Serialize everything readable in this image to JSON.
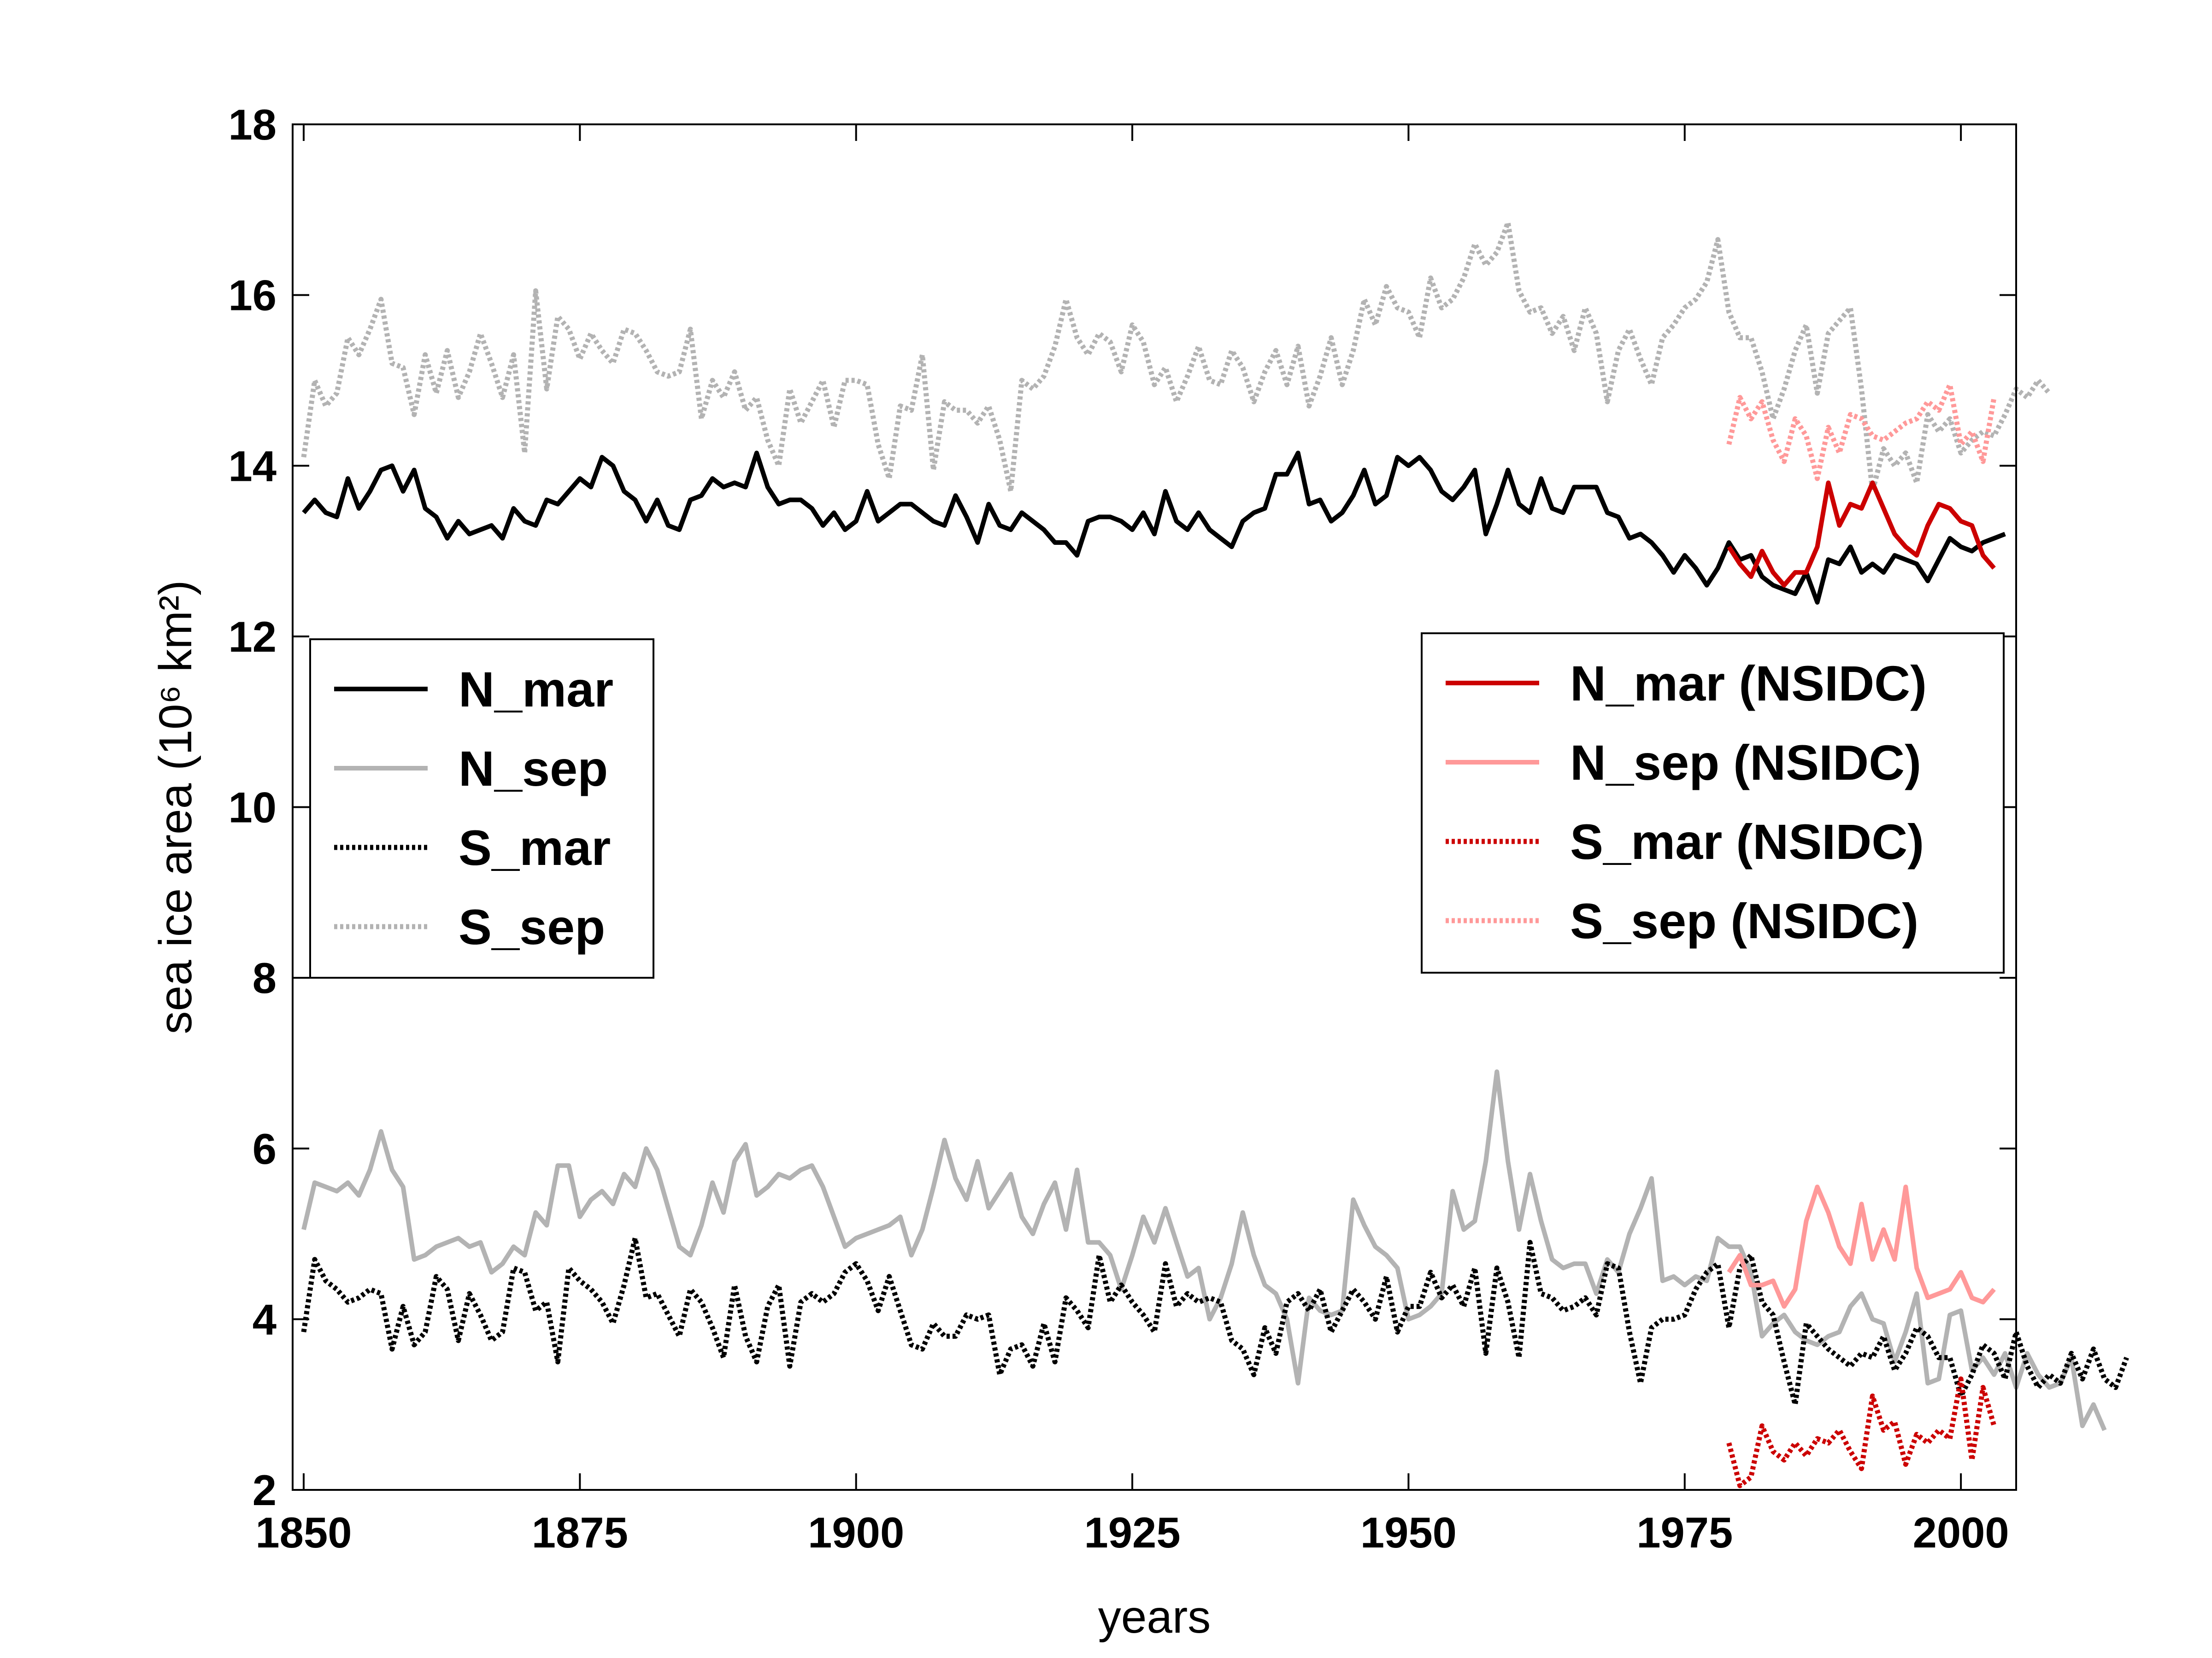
{
  "chart_data": {
    "type": "line",
    "title": "",
    "xlabel": "years",
    "ylabel": "sea ice area (10⁶ km²)",
    "xlim": [
      1849,
      2005
    ],
    "ylim": [
      2,
      18
    ],
    "x_ticks": [
      1850,
      1875,
      1900,
      1925,
      1950,
      1975,
      2000
    ],
    "y_ticks": [
      2,
      4,
      6,
      8,
      10,
      12,
      14,
      16,
      18
    ],
    "grid": false,
    "legends": [
      {
        "placement": "left",
        "entries": [
          "N_mar",
          "N_sep",
          "S_mar",
          "S_sep"
        ]
      },
      {
        "placement": "right",
        "entries": [
          "N_mar (NSIDC)",
          "N_sep (NSIDC)",
          "S_mar (NSIDC)",
          "S_sep (NSIDC)"
        ]
      }
    ],
    "series": [
      {
        "name": "N_mar",
        "color": "#000000",
        "dash": "solid",
        "x_start": 1850,
        "values": [
          13.45,
          13.6,
          13.45,
          13.4,
          13.85,
          13.5,
          13.7,
          13.95,
          14.0,
          13.7,
          13.95,
          13.5,
          13.4,
          13.15,
          13.35,
          13.2,
          13.25,
          13.3,
          13.15,
          13.5,
          13.35,
          13.3,
          13.6,
          13.55,
          13.7,
          13.85,
          13.75,
          14.1,
          14.0,
          13.7,
          13.6,
          13.35,
          13.6,
          13.3,
          13.25,
          13.6,
          13.65,
          13.85,
          13.75,
          13.8,
          13.75,
          14.15,
          13.75,
          13.55,
          13.6,
          13.6,
          13.5,
          13.3,
          13.45,
          13.25,
          13.35,
          13.7,
          13.35,
          13.45,
          13.55,
          13.55,
          13.45,
          13.35,
          13.3,
          13.65,
          13.4,
          13.1,
          13.55,
          13.3,
          13.25,
          13.45,
          13.35,
          13.25,
          13.1,
          13.1,
          12.95,
          13.35,
          13.4,
          13.4,
          13.35,
          13.25,
          13.45,
          13.2,
          13.7,
          13.35,
          13.25,
          13.45,
          13.25,
          13.15,
          13.05,
          13.35,
          13.45,
          13.5,
          13.9,
          13.9,
          14.15,
          13.55,
          13.6,
          13.35,
          13.45,
          13.65,
          13.95,
          13.55,
          13.65,
          14.1,
          14.0,
          14.1,
          13.95,
          13.7,
          13.6,
          13.75,
          13.95,
          13.2,
          13.55,
          13.95,
          13.55,
          13.45,
          13.85,
          13.5,
          13.45,
          13.75,
          13.75,
          13.75,
          13.45,
          13.4,
          13.15,
          13.2,
          13.1,
          12.95,
          12.75,
          12.95,
          12.8,
          12.6,
          12.8,
          13.1,
          12.9,
          12.95,
          12.7,
          12.6,
          12.55,
          12.5,
          12.75,
          12.4,
          12.9,
          12.85,
          13.05,
          12.75,
          12.85,
          12.75,
          12.95,
          12.9,
          12.85,
          12.65,
          12.9,
          13.15,
          13.05,
          13.0,
          13.1,
          13.15,
          13.2
        ]
      },
      {
        "name": "N_sep",
        "color": "#b3b3b3",
        "dash": "solid",
        "x_start": 1850,
        "values": [
          5.05,
          5.6,
          5.55,
          5.5,
          5.6,
          5.45,
          5.75,
          6.2,
          5.75,
          5.55,
          4.7,
          4.75,
          4.85,
          4.9,
          4.95,
          4.85,
          4.9,
          4.55,
          4.65,
          4.85,
          4.75,
          5.25,
          5.1,
          5.8,
          5.8,
          5.2,
          5.4,
          5.5,
          5.35,
          5.7,
          5.55,
          6.0,
          5.75,
          5.3,
          4.85,
          4.75,
          5.1,
          5.6,
          5.25,
          5.85,
          6.05,
          5.45,
          5.55,
          5.7,
          5.65,
          5.75,
          5.8,
          5.55,
          5.2,
          4.85,
          4.95,
          5.0,
          5.05,
          5.1,
          5.2,
          4.75,
          5.05,
          5.55,
          6.1,
          5.65,
          5.4,
          5.85,
          5.3,
          5.5,
          5.7,
          5.2,
          5.0,
          5.35,
          5.6,
          5.05,
          5.75,
          4.9,
          4.9,
          4.75,
          4.35,
          4.75,
          5.2,
          4.9,
          5.3,
          4.9,
          4.5,
          4.6,
          4.0,
          4.25,
          4.65,
          5.25,
          4.75,
          4.4,
          4.3,
          4.0,
          3.25,
          4.25,
          4.1,
          4.05,
          4.1,
          5.4,
          5.1,
          4.85,
          4.75,
          4.6,
          4.0,
          4.05,
          4.15,
          4.3,
          5.5,
          5.05,
          5.15,
          5.85,
          6.9,
          5.85,
          5.05,
          5.7,
          5.15,
          4.7,
          4.6,
          4.65,
          4.65,
          4.3,
          4.7,
          4.55,
          5.0,
          5.3,
          5.65,
          4.45,
          4.5,
          4.4,
          4.5,
          4.45,
          4.95,
          4.85,
          4.85,
          4.55,
          3.8,
          3.95,
          4.05,
          3.85,
          3.75,
          3.7,
          3.8,
          3.85,
          4.15,
          4.3,
          4.0,
          3.95,
          3.5,
          3.85,
          4.3,
          3.25,
          3.3,
          4.05,
          4.1,
          3.4,
          3.55,
          3.35,
          3.6,
          3.2,
          3.6,
          3.35,
          3.2,
          3.25,
          3.55,
          2.75,
          3.0,
          2.7
        ]
      },
      {
        "name": "S_mar",
        "color": "#000000",
        "dash": "dotted",
        "x_start": 1850,
        "values": [
          3.85,
          4.7,
          4.45,
          4.35,
          4.2,
          4.25,
          4.35,
          4.3,
          3.65,
          4.15,
          3.7,
          3.85,
          4.5,
          4.35,
          3.75,
          4.3,
          4.05,
          3.75,
          3.85,
          4.6,
          4.55,
          4.1,
          4.2,
          3.5,
          4.6,
          4.45,
          4.35,
          4.2,
          3.95,
          4.4,
          4.95,
          4.25,
          4.3,
          4.05,
          3.8,
          4.35,
          4.2,
          3.9,
          3.55,
          4.4,
          3.8,
          3.5,
          4.15,
          4.4,
          3.45,
          4.2,
          4.3,
          4.2,
          4.3,
          4.55,
          4.65,
          4.45,
          4.1,
          4.5,
          4.1,
          3.7,
          3.65,
          3.95,
          3.8,
          3.8,
          4.05,
          4.0,
          4.05,
          3.35,
          3.65,
          3.7,
          3.45,
          3.95,
          3.5,
          4.25,
          4.1,
          3.9,
          4.75,
          4.2,
          4.4,
          4.2,
          4.05,
          3.85,
          4.65,
          4.15,
          4.3,
          4.2,
          4.25,
          4.2,
          3.75,
          3.65,
          3.35,
          3.9,
          3.6,
          4.2,
          4.3,
          4.1,
          4.35,
          3.85,
          4.1,
          4.35,
          4.2,
          4.0,
          4.5,
          3.85,
          4.15,
          4.15,
          4.55,
          4.25,
          4.4,
          4.15,
          4.6,
          3.6,
          4.6,
          4.2,
          3.55,
          4.9,
          4.3,
          4.25,
          4.1,
          4.15,
          4.25,
          4.05,
          4.65,
          4.6,
          3.85,
          3.25,
          3.9,
          4.0,
          4.0,
          4.05,
          4.35,
          4.55,
          4.65,
          3.9,
          4.6,
          4.75,
          4.2,
          4.05,
          3.5,
          3.0,
          3.95,
          3.8,
          3.65,
          3.55,
          3.45,
          3.6,
          3.55,
          3.8,
          3.4,
          3.6,
          3.9,
          3.8,
          3.55,
          3.55,
          3.1,
          3.35,
          3.7,
          3.6,
          3.3,
          3.85,
          3.45,
          3.2,
          3.35,
          3.25,
          3.6,
          3.3,
          3.65,
          3.3,
          3.2,
          3.55
        ]
      },
      {
        "name": "S_sep",
        "color": "#b3b3b3",
        "dash": "dotted",
        "x_start": 1850,
        "values": [
          14.1,
          15.0,
          14.7,
          14.85,
          15.5,
          15.3,
          15.6,
          15.95,
          15.2,
          15.15,
          14.6,
          15.3,
          14.85,
          15.35,
          14.8,
          15.1,
          15.55,
          15.2,
          14.8,
          15.3,
          14.15,
          16.05,
          14.9,
          15.75,
          15.6,
          15.25,
          15.55,
          15.35,
          15.2,
          15.6,
          15.55,
          15.35,
          15.1,
          15.05,
          15.1,
          15.6,
          14.55,
          15.0,
          14.8,
          15.1,
          14.65,
          14.8,
          14.3,
          14.0,
          14.9,
          14.5,
          14.75,
          15.0,
          14.45,
          15.0,
          15.0,
          14.95,
          14.25,
          13.85,
          14.7,
          14.65,
          15.3,
          13.95,
          14.75,
          14.65,
          14.65,
          14.5,
          14.7,
          14.3,
          13.7,
          15.0,
          14.9,
          15.05,
          15.4,
          15.95,
          15.5,
          15.3,
          15.55,
          15.45,
          15.1,
          15.65,
          15.45,
          14.95,
          15.15,
          14.75,
          15.05,
          15.4,
          15.0,
          14.95,
          15.35,
          15.15,
          14.75,
          15.1,
          15.35,
          14.95,
          15.4,
          14.7,
          15.05,
          15.5,
          14.95,
          15.35,
          15.95,
          15.65,
          16.1,
          15.85,
          15.8,
          15.5,
          16.2,
          15.85,
          15.95,
          16.2,
          16.6,
          16.35,
          16.5,
          16.85,
          16.05,
          15.8,
          15.85,
          15.55,
          15.75,
          15.35,
          15.85,
          15.55,
          14.75,
          15.35,
          15.6,
          15.25,
          14.95,
          15.5,
          15.65,
          15.85,
          15.95,
          16.15,
          16.65,
          15.8,
          15.5,
          15.5,
          15.1,
          14.55,
          14.9,
          15.35,
          15.65,
          14.85,
          15.55,
          15.7,
          15.85,
          14.9,
          13.7,
          14.2,
          14.0,
          14.15,
          13.8,
          14.6,
          14.4,
          14.55,
          14.15,
          14.3,
          14.4,
          14.35,
          14.6,
          14.9,
          14.8,
          15.0,
          14.85
        ]
      },
      {
        "name": "N_mar (NSIDC)",
        "color": "#cc0000",
        "dash": "solid",
        "x_start": 1979,
        "values": [
          13.05,
          12.85,
          12.7,
          13.0,
          12.75,
          12.6,
          12.75,
          12.75,
          13.05,
          13.8,
          13.3,
          13.55,
          13.5,
          13.8,
          13.5,
          13.2,
          13.05,
          12.95,
          13.3,
          13.55,
          13.5,
          13.35,
          13.3,
          12.95,
          12.8
        ]
      },
      {
        "name": "N_sep (NSIDC)",
        "color": "#ff9999",
        "dash": "solid",
        "x_start": 1979,
        "values": [
          4.55,
          4.75,
          4.4,
          4.4,
          4.45,
          4.15,
          4.35,
          5.15,
          5.55,
          5.25,
          4.85,
          4.65,
          5.35,
          4.7,
          5.05,
          4.7,
          5.55,
          4.6,
          4.25,
          4.3,
          4.35,
          4.55,
          4.25,
          4.2,
          4.35
        ]
      },
      {
        "name": "S_mar (NSIDC)",
        "color": "#cc0000",
        "dash": "dotted",
        "x_start": 1979,
        "values": [
          2.55,
          2.05,
          2.15,
          2.75,
          2.45,
          2.35,
          2.55,
          2.4,
          2.6,
          2.55,
          2.7,
          2.45,
          2.25,
          3.1,
          2.7,
          2.8,
          2.3,
          2.65,
          2.55,
          2.7,
          2.6,
          3.3,
          2.35,
          3.2,
          2.75
        ]
      },
      {
        "name": "S_sep (NSIDC)",
        "color": "#ff9999",
        "dash": "dotted",
        "x_start": 1979,
        "values": [
          14.25,
          14.8,
          14.55,
          14.75,
          14.3,
          14.05,
          14.55,
          14.35,
          13.85,
          14.45,
          14.15,
          14.6,
          14.55,
          14.35,
          14.3,
          14.4,
          14.5,
          14.55,
          14.75,
          14.65,
          14.95,
          14.25,
          14.4,
          14.05,
          14.8
        ]
      }
    ]
  }
}
